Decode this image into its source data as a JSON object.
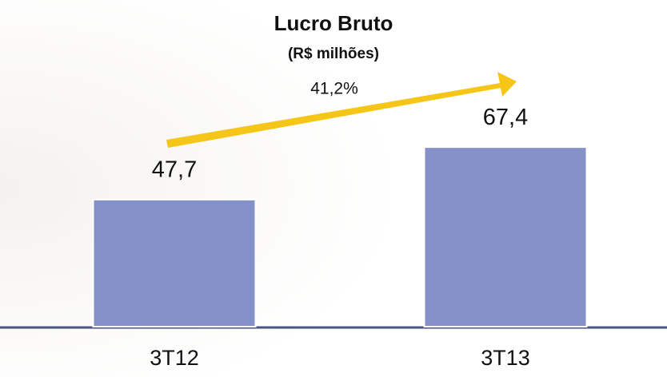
{
  "chart_data": {
    "type": "bar",
    "title": "Lucro Bruto",
    "subtitle": "(R$ milhões)",
    "annotation": "41,2%",
    "categories": [
      "3T12",
      "3T13"
    ],
    "values": [
      47.7,
      67.4
    ],
    "value_labels": [
      "47,7",
      "67,4"
    ],
    "color": "#8491c8",
    "ylim": [
      0,
      110
    ]
  }
}
